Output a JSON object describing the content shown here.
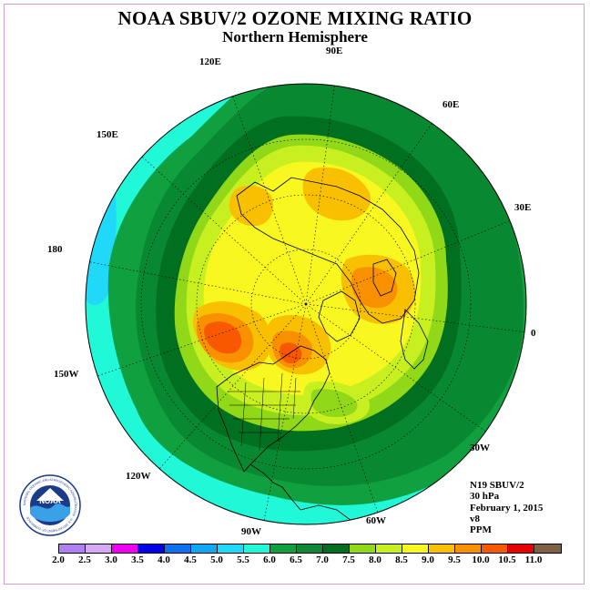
{
  "title": "NOAA SBUV/2 OZONE MIXING RATIO",
  "subtitle": "Northern Hemisphere",
  "longitude_labels": {
    "e90": "90E",
    "e120": "120E",
    "e60": "60E",
    "e150": "150E",
    "e30": "30E",
    "lon180": "180",
    "lon0": "0",
    "w150": "150W",
    "w30": "30W",
    "w120": "120W",
    "w60": "60W",
    "w90": "90W"
  },
  "info": {
    "instrument": "N19 SBUV/2",
    "level": "30 hPa",
    "date": "February 1, 2015",
    "version": "v8",
    "units": "PPM"
  },
  "colorbar": {
    "colors": [
      "#b080f0",
      "#d8a8f8",
      "#f000f0",
      "#0000e8",
      "#1070f0",
      "#10a8f0",
      "#20d8f8",
      "#20f8d8",
      "#10a040",
      "#108838",
      "#007020",
      "#90d818",
      "#c8f020",
      "#f8f820",
      "#f8c000",
      "#f89000",
      "#f85800",
      "#e80000",
      "#806040"
    ],
    "ticks": [
      "2.0",
      "2.5",
      "3.0",
      "3.5",
      "4.0",
      "4.5",
      "5.0",
      "5.5",
      "6.0",
      "6.5",
      "7.0",
      "7.5",
      "8.0",
      "8.5",
      "9.0",
      "9.5",
      "10.0",
      "10.5",
      "11.0"
    ]
  },
  "logo_text": {
    "center": "NOAA",
    "ring": "NATIONAL OCEANIC AND ATMOSPHERIC ADMINISTRATION · U.S. DEPARTMENT OF COMMERCE"
  }
}
